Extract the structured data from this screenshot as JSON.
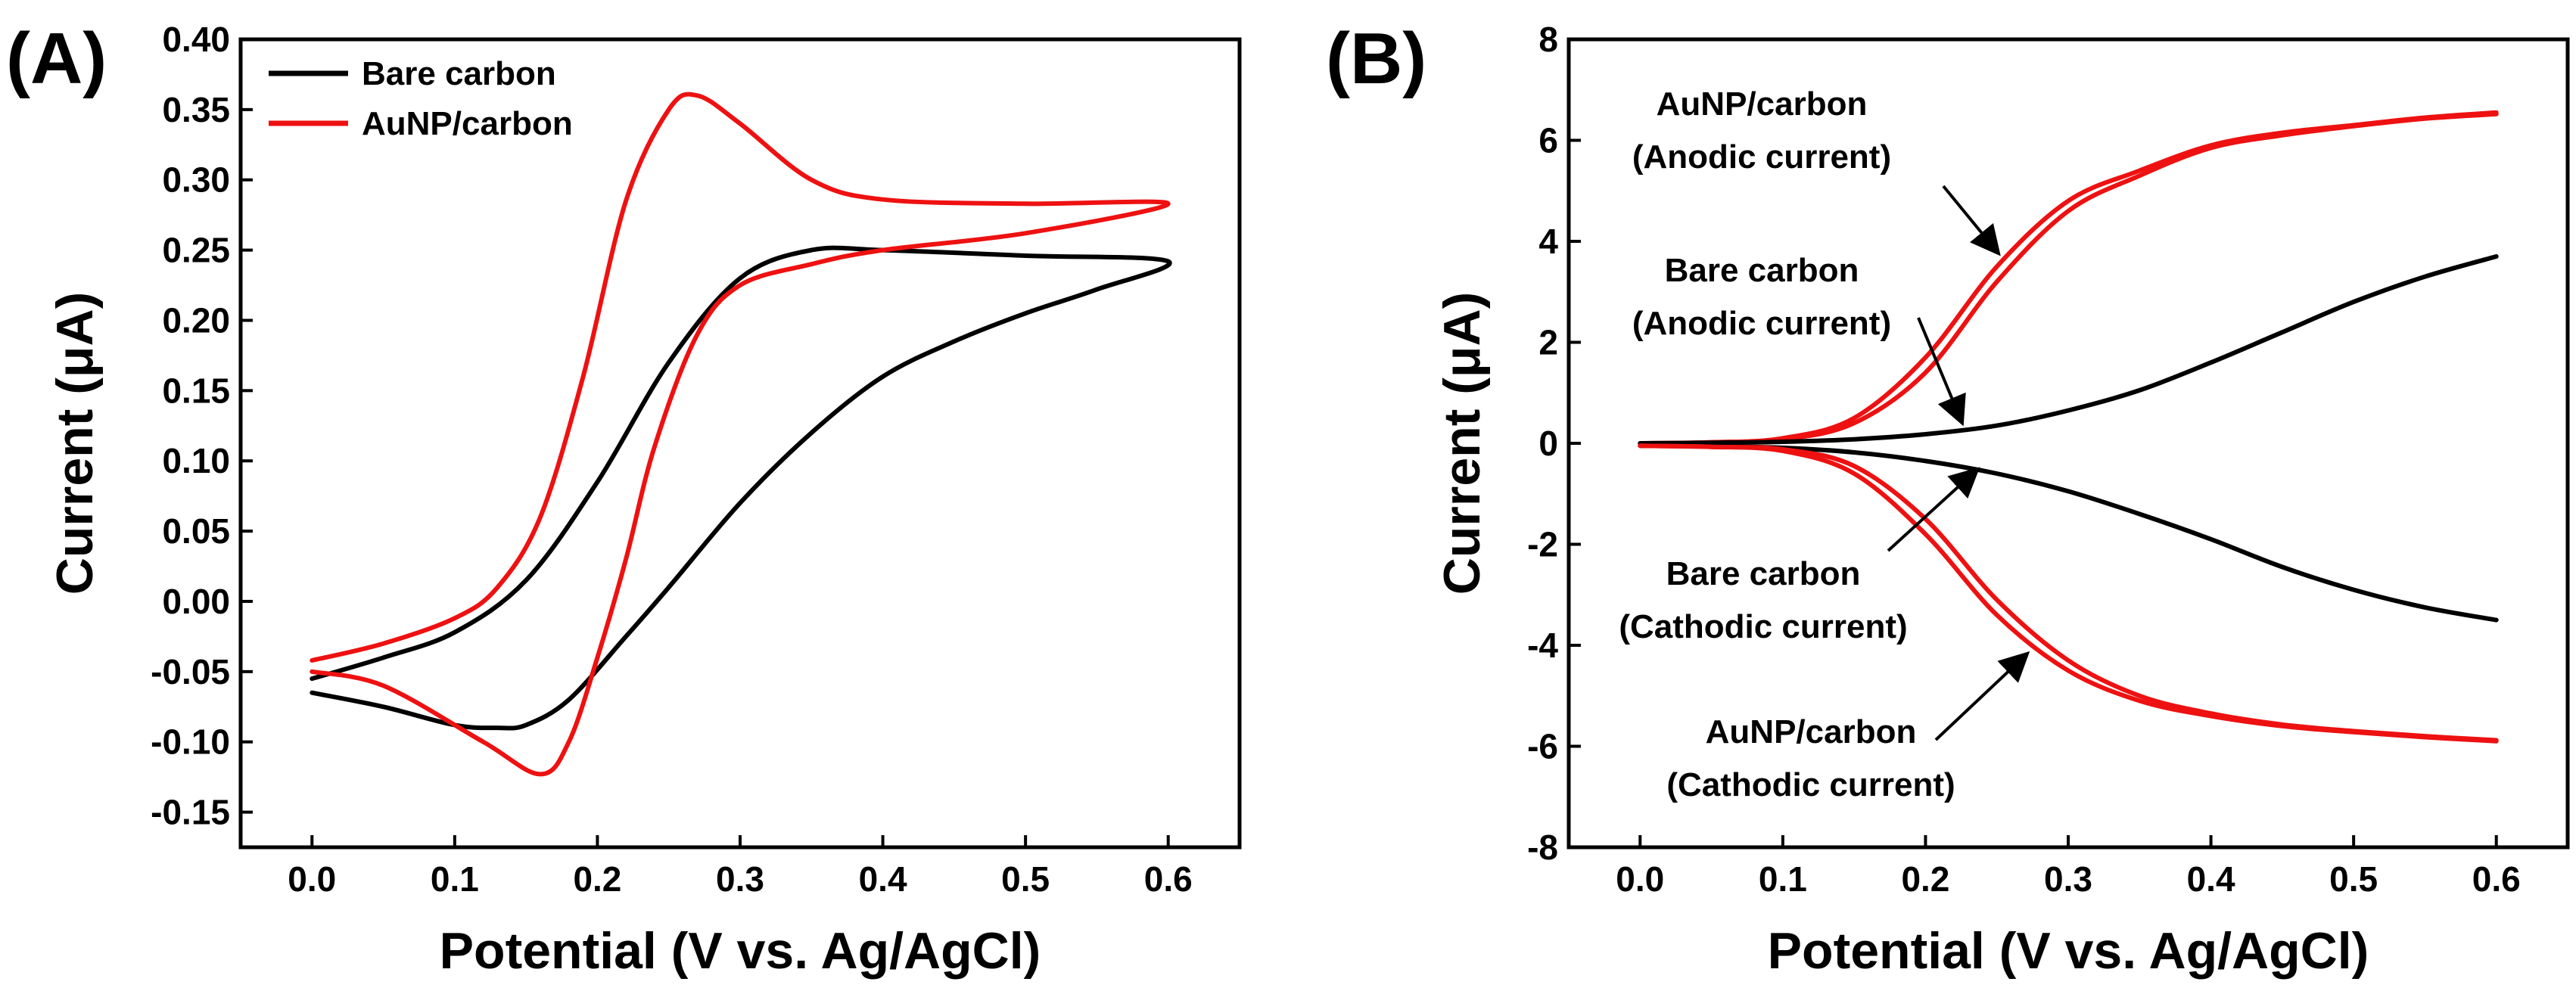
{
  "chart_data": [
    {
      "panel_label": "(A)",
      "type": "line",
      "xlabel": "Potential (V vs. Ag/AgCl)",
      "ylabel": "Current (μA)",
      "xlim": [
        -0.05,
        0.65
      ],
      "ylim": [
        -0.175,
        0.4
      ],
      "xticks": [
        0.0,
        0.1,
        0.2,
        0.3,
        0.4,
        0.5,
        0.6
      ],
      "xtick_labels": [
        "0.0",
        "0.1",
        "0.2",
        "0.3",
        "0.4",
        "0.5",
        "0.6"
      ],
      "yticks": [
        -0.15,
        -0.1,
        -0.05,
        0.0,
        0.05,
        0.1,
        0.15,
        0.2,
        0.25,
        0.3,
        0.35,
        0.4
      ],
      "ytick_labels": [
        "-0.15",
        "-0.10",
        "-0.05",
        "0.00",
        "0.05",
        "0.10",
        "0.15",
        "0.20",
        "0.25",
        "0.30",
        "0.35",
        "0.40"
      ],
      "legend": [
        {
          "name": "Bare carbon",
          "color": "#000000"
        },
        {
          "name": "AuNP/carbon",
          "color": "#ee1111"
        }
      ],
      "series": [
        {
          "name": "Bare carbon",
          "color": "#000000",
          "x": [
            0.0,
            0.05,
            0.1,
            0.15,
            0.2,
            0.25,
            0.3,
            0.35,
            0.4,
            0.5,
            0.6,
            0.55,
            0.5,
            0.45,
            0.4,
            0.35,
            0.3,
            0.25,
            0.22,
            0.18,
            0.15,
            0.13,
            0.1,
            0.05,
            0.0
          ],
          "y": [
            -0.055,
            -0.04,
            -0.022,
            0.015,
            0.085,
            0.17,
            0.23,
            0.25,
            0.25,
            0.246,
            0.242,
            0.222,
            0.205,
            0.185,
            0.16,
            0.12,
            0.07,
            0.01,
            -0.025,
            -0.07,
            -0.088,
            -0.09,
            -0.088,
            -0.075,
            -0.065
          ]
        },
        {
          "name": "AuNP/carbon",
          "color": "#ee1111",
          "x": [
            0.0,
            0.05,
            0.1,
            0.13,
            0.16,
            0.19,
            0.22,
            0.25,
            0.27,
            0.3,
            0.35,
            0.4,
            0.5,
            0.6,
            0.5,
            0.4,
            0.35,
            0.3,
            0.27,
            0.24,
            0.22,
            0.2,
            0.18,
            0.16,
            0.12,
            0.05,
            0.0
          ],
          "y": [
            -0.042,
            -0.03,
            -0.012,
            0.01,
            0.06,
            0.16,
            0.285,
            0.35,
            0.36,
            0.34,
            0.3,
            0.286,
            0.283,
            0.283,
            0.262,
            0.25,
            0.24,
            0.225,
            0.19,
            0.11,
            0.03,
            -0.04,
            -0.1,
            -0.123,
            -0.1,
            -0.06,
            -0.05
          ]
        }
      ]
    },
    {
      "panel_label": "(B)",
      "type": "line",
      "xlabel": "Potential (V vs. Ag/AgCl)",
      "ylabel": "Current (μA)",
      "xlim": [
        -0.05,
        0.65
      ],
      "ylim": [
        -8,
        8
      ],
      "xticks": [
        0.0,
        0.1,
        0.2,
        0.3,
        0.4,
        0.5,
        0.6
      ],
      "xtick_labels": [
        "0.0",
        "0.1",
        "0.2",
        "0.3",
        "0.4",
        "0.5",
        "0.6"
      ],
      "yticks": [
        -8,
        -6,
        -4,
        -2,
        0,
        2,
        4,
        6,
        8
      ],
      "ytick_labels": [
        "-8",
        "-6",
        "-4",
        "-2",
        "0",
        "2",
        "4",
        "6",
        "8"
      ],
      "series": [
        {
          "name": "AuNP/carbon anodic",
          "color": "#ee1111",
          "x": [
            0.0,
            0.05,
            0.1,
            0.15,
            0.2,
            0.25,
            0.3,
            0.35,
            0.4,
            0.45,
            0.5,
            0.55,
            0.6
          ],
          "y": [
            0.0,
            0.02,
            0.1,
            0.5,
            1.7,
            3.5,
            4.8,
            5.4,
            5.9,
            6.15,
            6.3,
            6.45,
            6.55
          ]
        },
        {
          "name": "AuNP/carbon anodic (repeat)",
          "color": "#ee1111",
          "x": [
            0.0,
            0.05,
            0.1,
            0.15,
            0.2,
            0.25,
            0.3,
            0.35,
            0.4,
            0.45,
            0.5,
            0.55,
            0.6
          ],
          "y": [
            0.0,
            0.02,
            0.08,
            0.4,
            1.4,
            3.2,
            4.6,
            5.3,
            5.85,
            6.1,
            6.28,
            6.43,
            6.52
          ]
        },
        {
          "name": "Bare carbon anodic",
          "color": "#000000",
          "x": [
            0.0,
            0.05,
            0.1,
            0.15,
            0.2,
            0.25,
            0.3,
            0.35,
            0.4,
            0.45,
            0.5,
            0.55,
            0.6
          ],
          "y": [
            0.0,
            0.01,
            0.03,
            0.08,
            0.18,
            0.35,
            0.65,
            1.05,
            1.6,
            2.2,
            2.8,
            3.3,
            3.7
          ]
        },
        {
          "name": "Bare carbon cathodic",
          "color": "#000000",
          "x": [
            0.0,
            0.05,
            0.1,
            0.15,
            0.2,
            0.25,
            0.3,
            0.35,
            0.4,
            0.45,
            0.5,
            0.55,
            0.6
          ],
          "y": [
            -0.05,
            -0.06,
            -0.09,
            -0.18,
            -0.35,
            -0.6,
            -0.95,
            -1.4,
            -1.9,
            -2.45,
            -2.9,
            -3.25,
            -3.5
          ]
        },
        {
          "name": "AuNP/carbon cathodic",
          "color": "#ee1111",
          "x": [
            0.0,
            0.05,
            0.1,
            0.15,
            0.2,
            0.25,
            0.3,
            0.35,
            0.4,
            0.45,
            0.5,
            0.55,
            0.6
          ],
          "y": [
            -0.05,
            -0.07,
            -0.15,
            -0.6,
            -1.8,
            -3.4,
            -4.5,
            -5.1,
            -5.4,
            -5.6,
            -5.72,
            -5.82,
            -5.9
          ]
        },
        {
          "name": "AuNP/carbon cathodic (repeat)",
          "color": "#ee1111",
          "x": [
            0.0,
            0.05,
            0.1,
            0.15,
            0.2,
            0.25,
            0.3,
            0.35,
            0.4,
            0.45,
            0.5,
            0.55,
            0.6
          ],
          "y": [
            -0.05,
            -0.07,
            -0.12,
            -0.45,
            -1.5,
            -3.1,
            -4.3,
            -5.0,
            -5.35,
            -5.57,
            -5.7,
            -5.8,
            -5.88
          ]
        }
      ],
      "annotations": [
        {
          "lines": [
            "AuNP/carbon",
            "(Anodic current)"
          ],
          "arrow_to": [
            0.25,
            3.8
          ]
        },
        {
          "lines": [
            "Bare carbon",
            "(Anodic current)"
          ],
          "arrow_to": [
            0.225,
            0.45
          ]
        },
        {
          "lines": [
            "Bare carbon",
            "(Cathodic current)"
          ],
          "arrow_to": [
            0.235,
            -0.55
          ]
        },
        {
          "lines": [
            "AuNP/carbon",
            "(Cathodic current)"
          ],
          "arrow_to": [
            0.27,
            -4.2
          ]
        }
      ]
    }
  ]
}
